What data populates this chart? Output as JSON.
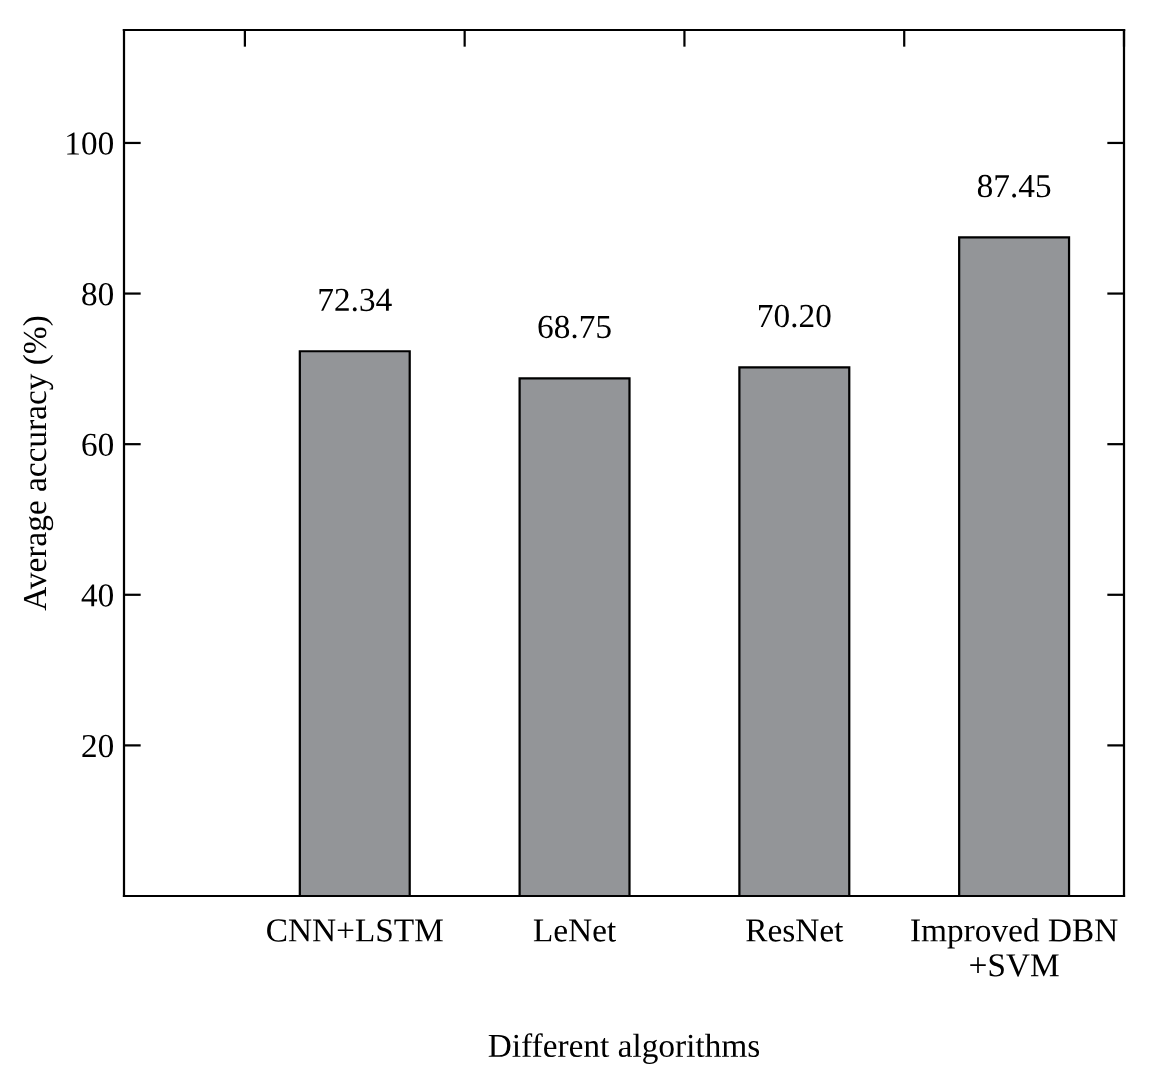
{
  "chart_data": {
    "type": "bar",
    "xlabel": "Different algorithms",
    "ylabel": "Average accuracy (%)",
    "categories": [
      "CNN+LSTM",
      "LeNet",
      "ResNet",
      "Improved DBN\n+SVM"
    ],
    "values": [
      72.34,
      68.75,
      70.2,
      87.45
    ],
    "value_labels": [
      "72.34",
      "68.75",
      "70.20",
      "87.45"
    ],
    "color": "#939598",
    "ylim": [
      0,
      115
    ],
    "yticks": [
      20,
      40,
      60,
      80,
      100
    ],
    "grid": false
  }
}
